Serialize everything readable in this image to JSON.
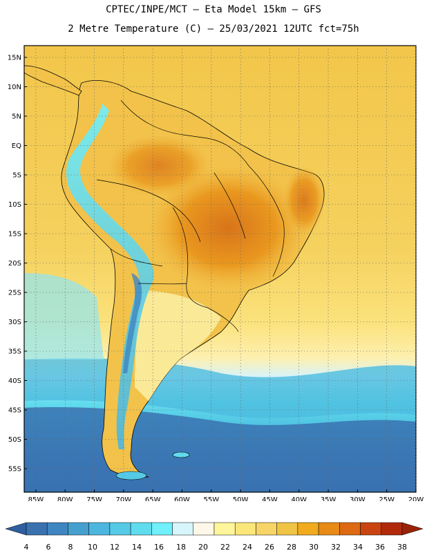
{
  "header": {
    "line1": "CPTEC/INPE/MCT –  Eta Model 15km – GFS",
    "line2": "2 Metre Temperature (C) – 25/03/2021 12UTC fct=75h"
  },
  "map": {
    "lat_labels": [
      "15N",
      "10N",
      "5N",
      "EQ",
      "5S",
      "10S",
      "15S",
      "20S",
      "25S",
      "30S",
      "35S",
      "40S",
      "45S",
      "50S",
      "55S"
    ],
    "lon_labels": [
      "85W",
      "80W",
      "75W",
      "70W",
      "65W",
      "60W",
      "55W",
      "50W",
      "45W",
      "40W",
      "35W",
      "30W",
      "25W",
      "20W"
    ],
    "lat_values": [
      15,
      10,
      5,
      0,
      -5,
      -10,
      -15,
      -20,
      -25,
      -30,
      -35,
      -40,
      -45,
      -50,
      -55
    ],
    "lon_values": [
      -85,
      -80,
      -75,
      -70,
      -65,
      -60,
      -55,
      -50,
      -45,
      -40,
      -35,
      -30,
      -25,
      -20
    ],
    "grid": "dotted"
  },
  "colorbar": {
    "labels": [
      "4",
      "6",
      "8",
      "10",
      "12",
      "14",
      "16",
      "18",
      "20",
      "22",
      "24",
      "26",
      "28",
      "30",
      "32",
      "34",
      "36",
      "38"
    ],
    "colors": [
      "#3a72b0",
      "#3f86c0",
      "#45a0cf",
      "#4cb6de",
      "#55c9e6",
      "#5fdcee",
      "#6ff0fb",
      "#d6f6fb",
      "#fff8e8",
      "#fff59a",
      "#fbe67a",
      "#f6d566",
      "#f0c445",
      "#f0ab1e",
      "#e88a16",
      "#dd6a12",
      "#c94410",
      "#b02a0a"
    ],
    "low_color": "#2f5fa0",
    "high_color": "#9a2208"
  }
}
